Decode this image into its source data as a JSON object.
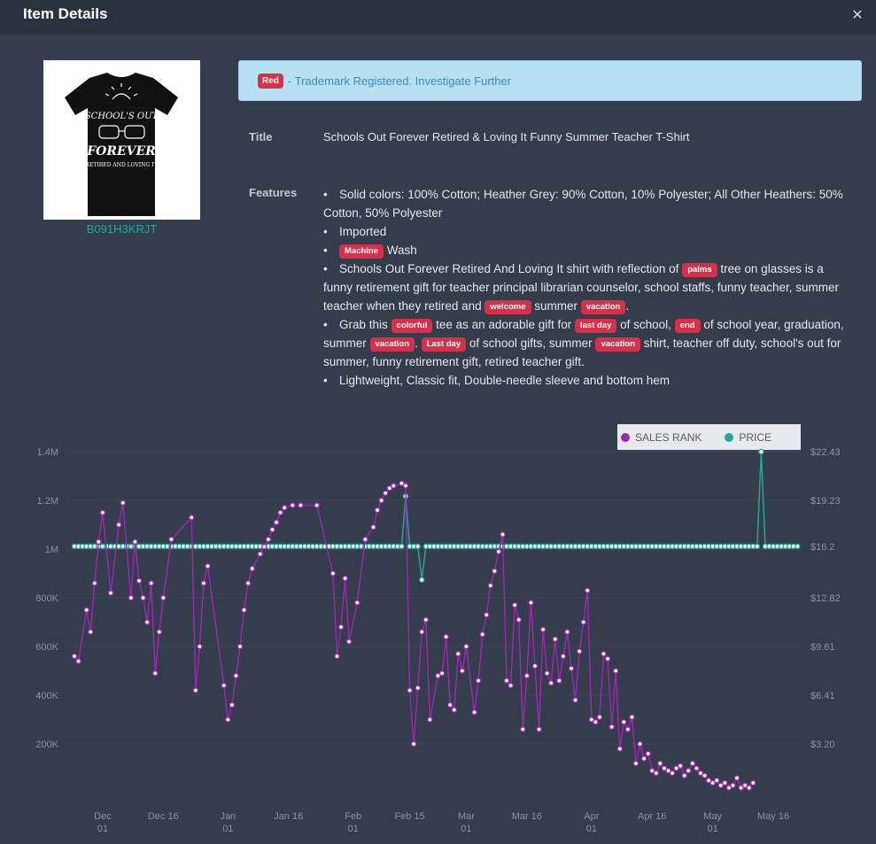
{
  "header": {
    "title": "Item Details",
    "close_icon": "close-icon"
  },
  "product": {
    "asin": "B091H3KRJT",
    "image": {
      "text_top": "SCHOOL'S OUT",
      "text_mid": "FOREVER",
      "text_bottom": "RETIRED AND LOVING IT"
    }
  },
  "alert": {
    "badge": "Red",
    "message": "- Trademark Registered. Investigate Further"
  },
  "details": {
    "title_label": "Title",
    "title_value": "Schools Out Forever Retired & Loving It Funny Summer Teacher T-Shirt",
    "features_label": "Features",
    "bullet": "•",
    "features": [
      [
        "Solid colors: 100% Cotton; Heather Grey: 90% Cotton, 10% Polyester; All Other Heathers: 50% Cotton, 50% Polyester"
      ],
      [
        "Imported"
      ],
      [
        {
          "kw": "Machine"
        },
        " Wash"
      ],
      [
        "Schools Out Forever Retired And Loving It shirt with reflection of ",
        {
          "kw": "palms"
        },
        " tree on glasses is a funny retirement gift for teacher principal librarian counselor, school staffs, funny teacher, summer teacher when they retired and ",
        {
          "kw": "welcome"
        },
        " summer ",
        {
          "kw": "vacation"
        },
        "."
      ],
      [
        "Grab this ",
        {
          "kw": "colorful"
        },
        " tee as an adorable gift for ",
        {
          "kw": "last day"
        },
        " of school, ",
        {
          "kw": "end"
        },
        " of school year, graduation, summer ",
        {
          "kw": "vacation"
        },
        ". ",
        {
          "kw": "Last day"
        },
        " of school gifts, summer ",
        {
          "kw": "vacation"
        },
        " shirt, teacher off duty, school's out for summer, funny retirement gift, retired teacher gift."
      ],
      [
        "Lightweight, Classic fit, Double-needle sleeve and bottom hem"
      ]
    ]
  },
  "legend": {
    "sales_rank": "SALES RANK",
    "price": "PRICE"
  },
  "colors": {
    "sales_rank": "#9c27b0",
    "price": "#26a69a",
    "kw": "#d9304a"
  },
  "chart_data": {
    "type": "line",
    "y_left_ticks": [
      "1.4M",
      "1.2M",
      "1M",
      "800K",
      "600K",
      "400K",
      "200K"
    ],
    "y_left_values": [
      1400000,
      1200000,
      1000000,
      800000,
      600000,
      400000,
      200000
    ],
    "y_right_ticks": [
      "$22.43",
      "$19.23",
      "$16.2",
      "$12.82",
      "$9.61",
      "$6.41",
      "$3.20"
    ],
    "y_right_values": [
      22.43,
      19.23,
      16.2,
      12.82,
      9.61,
      6.41,
      3.2
    ],
    "x_ticks": [
      {
        "label": "Dec",
        "sub": "01",
        "d": 25
      },
      {
        "label": "Dec 16",
        "sub": "",
        "d": 40
      },
      {
        "label": "Jan",
        "sub": "01",
        "d": 56
      },
      {
        "label": "Jan 16",
        "sub": "",
        "d": 71
      },
      {
        "label": "Feb",
        "sub": "01",
        "d": 87
      },
      {
        "label": "Feb 15",
        "sub": "",
        "d": 101
      },
      {
        "label": "Mar",
        "sub": "01",
        "d": 115
      },
      {
        "label": "Mar 16",
        "sub": "",
        "d": 130
      },
      {
        "label": "Apr",
        "sub": "01",
        "d": 146
      },
      {
        "label": "Apr 16",
        "sub": "",
        "d": 161
      },
      {
        "label": "May",
        "sub": "01",
        "d": 176
      },
      {
        "label": "May 16",
        "sub": "",
        "d": 191
      }
    ],
    "x_range": [
      18,
      198
    ],
    "ylim_left": [
      0,
      1400000
    ],
    "ylim_right": [
      0,
      22.43
    ],
    "series": [
      {
        "name": "SALES RANK",
        "points": [
          [
            18,
            560000
          ],
          [
            19,
            540000
          ],
          [
            21,
            750000
          ],
          [
            22,
            660000
          ],
          [
            23,
            860000
          ],
          [
            24,
            1030000
          ],
          [
            25,
            1150000
          ],
          [
            27,
            820000
          ],
          [
            29,
            1100000
          ],
          [
            30,
            1190000
          ],
          [
            32,
            800000
          ],
          [
            33,
            1030000
          ],
          [
            34,
            870000
          ],
          [
            35,
            800000
          ],
          [
            36,
            700000
          ],
          [
            37,
            860000
          ],
          [
            38,
            490000
          ],
          [
            39,
            660000
          ],
          [
            40,
            800000
          ],
          [
            42,
            1040000
          ],
          [
            47,
            1130000
          ],
          [
            48,
            420000
          ],
          [
            49,
            600000
          ],
          [
            50,
            860000
          ],
          [
            51,
            930000
          ],
          [
            55,
            440000
          ],
          [
            56,
            300000
          ],
          [
            57,
            360000
          ],
          [
            58,
            480000
          ],
          [
            59,
            600000
          ],
          [
            60,
            750000
          ],
          [
            61,
            860000
          ],
          [
            62,
            920000
          ],
          [
            64,
            980000
          ],
          [
            65,
            1010000
          ],
          [
            66,
            1040000
          ],
          [
            67,
            1080000
          ],
          [
            68,
            1110000
          ],
          [
            69,
            1150000
          ],
          [
            70,
            1170000
          ],
          [
            72,
            1180000
          ],
          [
            74,
            1180000
          ],
          [
            78,
            1180000
          ],
          [
            82,
            900000
          ],
          [
            83,
            560000
          ],
          [
            84,
            680000
          ],
          [
            85,
            880000
          ],
          [
            86,
            620000
          ],
          [
            88,
            780000
          ],
          [
            90,
            1040000
          ],
          [
            92,
            1090000
          ],
          [
            93,
            1160000
          ],
          [
            94,
            1200000
          ],
          [
            95,
            1230000
          ],
          [
            96,
            1250000
          ],
          [
            97,
            1260000
          ],
          [
            99,
            1270000
          ],
          [
            100,
            1260000
          ],
          [
            101,
            420000
          ],
          [
            102,
            200000
          ],
          [
            103,
            430000
          ],
          [
            104,
            660000
          ],
          [
            105,
            710000
          ],
          [
            106,
            300000
          ],
          [
            108,
            480000
          ],
          [
            109,
            490000
          ],
          [
            110,
            640000
          ],
          [
            111,
            360000
          ],
          [
            112,
            340000
          ],
          [
            113,
            570000
          ],
          [
            114,
            500000
          ],
          [
            115,
            600000
          ],
          [
            117,
            330000
          ],
          [
            118,
            460000
          ],
          [
            119,
            650000
          ],
          [
            120,
            730000
          ],
          [
            121,
            850000
          ],
          [
            122,
            910000
          ],
          [
            123,
            990000
          ],
          [
            124,
            1060000
          ],
          [
            125,
            460000
          ],
          [
            126,
            440000
          ],
          [
            127,
            770000
          ],
          [
            128,
            710000
          ],
          [
            129,
            260000
          ],
          [
            130,
            480000
          ],
          [
            131,
            780000
          ],
          [
            132,
            520000
          ],
          [
            133,
            260000
          ],
          [
            134,
            670000
          ],
          [
            135,
            490000
          ],
          [
            136,
            450000
          ],
          [
            137,
            630000
          ],
          [
            138,
            460000
          ],
          [
            139,
            560000
          ],
          [
            140,
            660000
          ],
          [
            141,
            510000
          ],
          [
            142,
            380000
          ],
          [
            143,
            580000
          ],
          [
            144,
            700000
          ],
          [
            145,
            830000
          ],
          [
            146,
            300000
          ],
          [
            147,
            290000
          ],
          [
            148,
            310000
          ],
          [
            149,
            570000
          ],
          [
            150,
            550000
          ],
          [
            151,
            270000
          ],
          [
            152,
            500000
          ],
          [
            153,
            180000
          ],
          [
            154,
            290000
          ],
          [
            155,
            260000
          ],
          [
            156,
            310000
          ],
          [
            157,
            120000
          ],
          [
            158,
            200000
          ],
          [
            159,
            140000
          ],
          [
            160,
            160000
          ],
          [
            161,
            90000
          ],
          [
            162,
            80000
          ],
          [
            163,
            120000
          ],
          [
            164,
            100000
          ],
          [
            165,
            90000
          ],
          [
            166,
            80000
          ],
          [
            167,
            100000
          ],
          [
            168,
            110000
          ],
          [
            169,
            70000
          ],
          [
            170,
            90000
          ],
          [
            171,
            120000
          ],
          [
            172,
            100000
          ],
          [
            173,
            80000
          ],
          [
            174,
            70000
          ],
          [
            175,
            50000
          ],
          [
            176,
            40000
          ],
          [
            177,
            50000
          ],
          [
            178,
            30000
          ],
          [
            179,
            40000
          ],
          [
            180,
            20000
          ],
          [
            181,
            30000
          ],
          [
            182,
            60000
          ],
          [
            183,
            20000
          ],
          [
            184,
            30000
          ],
          [
            185,
            20000
          ],
          [
            186,
            40000
          ]
        ]
      },
      {
        "name": "PRICE",
        "spike_high": [
          [
            100,
            19.5
          ],
          [
            188,
            22.43
          ]
        ],
        "dip": [
          [
            104,
            14.0
          ]
        ],
        "base": 16.2
      }
    ]
  }
}
